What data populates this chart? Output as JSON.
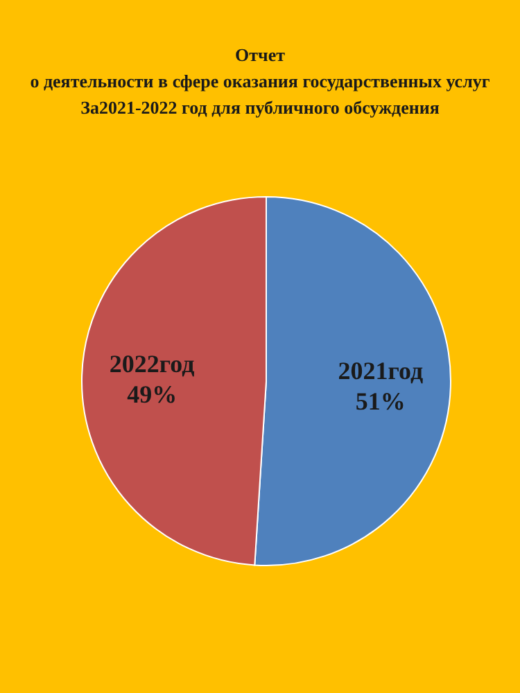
{
  "chart_data": {
    "type": "pie",
    "title": "Отчет\nо деятельности в сфере оказания государственных услуг\nЗа2021-2022 год для публичного обсуждения",
    "categories": [
      "2021год",
      "2022год"
    ],
    "values": [
      51,
      49
    ],
    "colors": [
      "#4f81bd",
      "#c0504d"
    ],
    "value_labels": [
      "51%",
      "49%"
    ],
    "legend": false
  }
}
